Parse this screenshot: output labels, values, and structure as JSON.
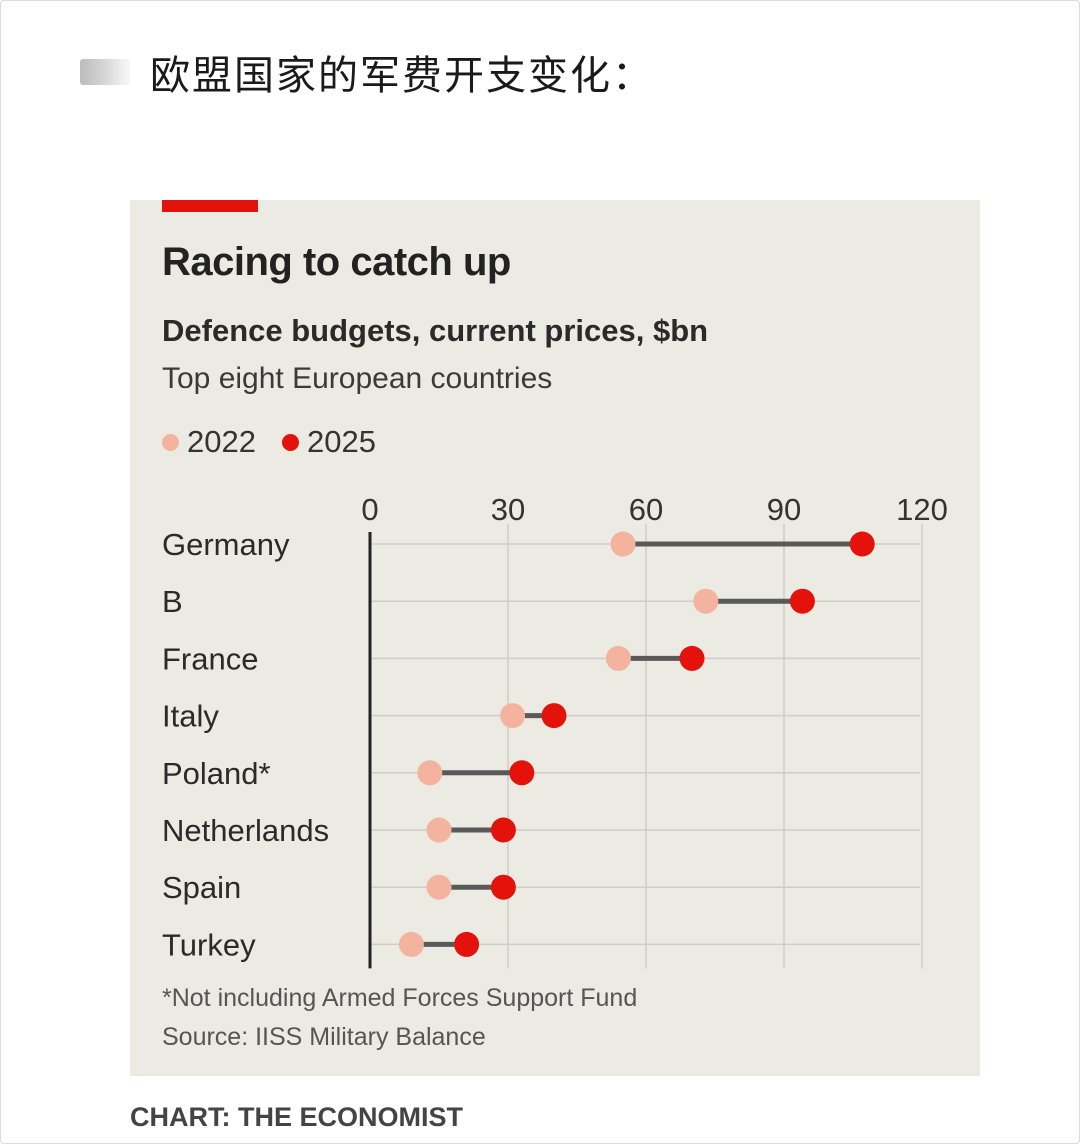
{
  "post": {
    "title": "欧盟国家的军费开支变化："
  },
  "colors": {
    "background": "#ebeae3",
    "accent": "#e3120b",
    "series_2022": "#f4b39e",
    "series_2025": "#e3120b",
    "connector": "#595959",
    "gridline": "#cfcdc6"
  },
  "chart_data": {
    "type": "dumbbell",
    "title": "Racing to catch up",
    "subtitle": "Defence budgets, current prices, $bn",
    "subtitle2": "Top eight European countries",
    "categories": [
      "Germany",
      "B",
      "France",
      "Italy",
      "Poland*",
      "Netherlands",
      "Spain",
      "Turkey"
    ],
    "series": [
      {
        "name": "2022",
        "values": [
          55,
          73,
          54,
          31,
          13,
          15,
          15,
          9
        ]
      },
      {
        "name": "2025",
        "values": [
          107,
          94,
          70,
          40,
          33,
          29,
          29,
          21
        ]
      }
    ],
    "xlim": [
      0,
      120
    ],
    "xticks": [
      "0",
      "30",
      "60",
      "90",
      "120"
    ],
    "grid": true,
    "legend_position": "top-left",
    "footnote": "*Not including Armed Forces Support Fund",
    "source": "Source: IISS Military Balance",
    "credit": "CHART: THE ECONOMIST"
  }
}
